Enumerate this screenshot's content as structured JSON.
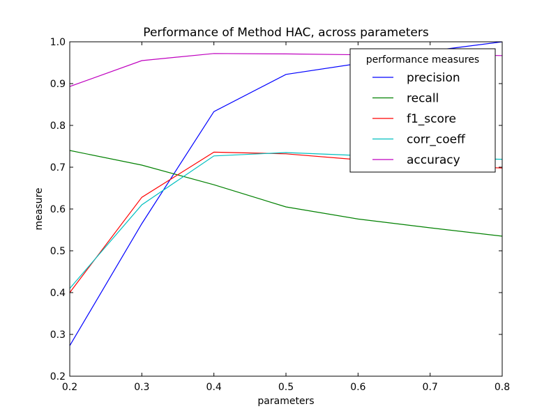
{
  "chart_data": {
    "type": "line",
    "title": "Performance of Method HAC, across parameters",
    "xlabel": "parameters",
    "ylabel": "measure",
    "xlim": [
      0.2,
      0.8
    ],
    "ylim": [
      0.2,
      1.0
    ],
    "xticks": [
      "0.2",
      "0.3",
      "0.4",
      "0.5",
      "0.6",
      "0.7",
      "0.8"
    ],
    "yticks": [
      "0.2",
      "0.3",
      "0.4",
      "0.5",
      "0.6",
      "0.7",
      "0.8",
      "0.9",
      "1.0"
    ],
    "grid": false,
    "legend": {
      "title": "performance measures",
      "position": "upper right"
    },
    "x": [
      0.2,
      0.3,
      0.4,
      0.5,
      0.6,
      0.7,
      0.8
    ],
    "series": [
      {
        "name": "precision",
        "color": "#0000ff",
        "values": [
          0.273,
          0.565,
          0.833,
          0.922,
          0.948,
          0.978,
          1.0
        ]
      },
      {
        "name": "recall",
        "color": "#008000",
        "values": [
          0.74,
          0.705,
          0.658,
          0.605,
          0.576,
          0.555,
          0.535
        ]
      },
      {
        "name": "f1_score",
        "color": "#ff0000",
        "values": [
          0.4,
          0.628,
          0.736,
          0.732,
          0.718,
          0.705,
          0.698
        ]
      },
      {
        "name": "corr_coeff",
        "color": "#00bfbf",
        "values": [
          0.41,
          0.61,
          0.727,
          0.735,
          0.728,
          0.722,
          0.719
        ]
      },
      {
        "name": "accuracy",
        "color": "#bf00bf",
        "values": [
          0.893,
          0.955,
          0.972,
          0.971,
          0.969,
          0.97,
          0.967
        ]
      }
    ]
  }
}
